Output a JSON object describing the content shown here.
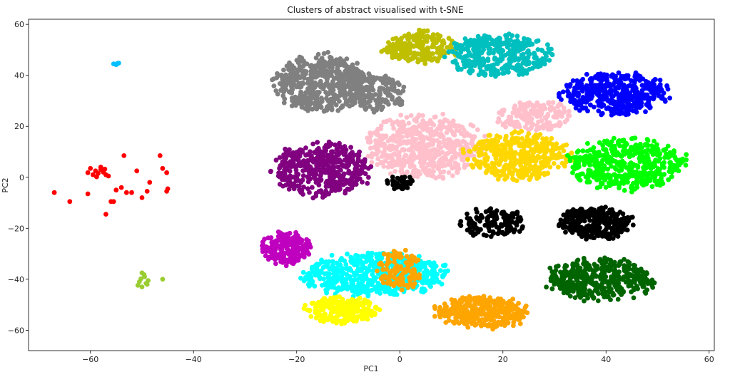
{
  "chart_data": {
    "type": "scatter",
    "title": "Clusters of abstract visualised with t-SNE",
    "xlabel": "PC1",
    "ylabel": "PC2",
    "xlim": [
      -72,
      61
    ],
    "ylim": [
      -68,
      62
    ],
    "xticks": [
      -60,
      -40,
      -20,
      0,
      20,
      40,
      60
    ],
    "yticks": [
      -60,
      -40,
      -20,
      0,
      20,
      40,
      60
    ],
    "xtick_labels": [
      "−60",
      "−40",
      "−20",
      "0",
      "20",
      "40",
      "60"
    ],
    "ytick_labels": [
      "−60",
      "−40",
      "−20",
      "0",
      "20",
      "40",
      "60"
    ],
    "grid": false,
    "legend": "none",
    "clusters": [
      {
        "color": "#ff0000",
        "points": [
          [
            -58,
            3
          ],
          [
            -57.5,
            2
          ],
          [
            -58.5,
            1.5
          ],
          [
            -57,
            1
          ],
          [
            -59,
            2.5
          ],
          [
            -58,
            4
          ],
          [
            -57.2,
            3.2
          ],
          [
            -59.5,
            1
          ],
          [
            -60,
            3.5
          ],
          [
            -56.5,
            0.5
          ],
          [
            -60.5,
            1.8
          ],
          [
            -58.8,
            0.2
          ],
          [
            -55,
            -5
          ],
          [
            -54,
            -4
          ],
          [
            -53,
            -6
          ],
          [
            -53.5,
            8.5
          ],
          [
            -52,
            -6
          ],
          [
            -51,
            2.5
          ],
          [
            -50,
            -8
          ],
          [
            -48.5,
            -2
          ],
          [
            -46.5,
            8.5
          ],
          [
            -46,
            3.5
          ],
          [
            -45.2,
            1.8
          ],
          [
            -45,
            -4.5
          ],
          [
            -45.2,
            -5.5
          ],
          [
            -49,
            -5.5
          ],
          [
            -57,
            -14.5
          ],
          [
            -56,
            -9.5
          ],
          [
            -60.5,
            -6.5
          ],
          [
            -64,
            -9.5
          ],
          [
            -67,
            -6
          ],
          [
            -55.5,
            -9.5
          ]
        ]
      },
      {
        "color": "#00bfff",
        "points": [
          [
            -55.5,
            44.5
          ],
          [
            -54.5,
            44.8
          ],
          [
            -55,
            44.2
          ],
          [
            -54.8,
            44.6
          ]
        ]
      },
      {
        "color": "#9acd32",
        "points": [
          [
            -50,
            -37.5
          ],
          [
            -49.5,
            -39
          ],
          [
            -50.5,
            -41
          ],
          [
            -49,
            -42
          ],
          [
            -50,
            -43
          ],
          [
            -48.8,
            -40.5
          ],
          [
            -49.6,
            -38.2
          ],
          [
            -50.8,
            -42.4
          ],
          [
            -49.2,
            -41.6
          ],
          [
            -50.2,
            -39.8
          ],
          [
            -46,
            -40
          ]
        ]
      }
    ],
    "regions": [
      {
        "color": "#808080",
        "cx": -15,
        "cy": 37,
        "rx": 9,
        "ry": 11,
        "n": 520,
        "seed": 11
      },
      {
        "color": "#808080",
        "cx": -5,
        "cy": 33,
        "rx": 6,
        "ry": 7,
        "n": 150,
        "seed": 12
      },
      {
        "color": "#bfbf00",
        "cx": 4,
        "cy": 51,
        "rx": 7,
        "ry": 6,
        "n": 240,
        "seed": 21
      },
      {
        "color": "#00bfbf",
        "cx": 19,
        "cy": 48,
        "rx": 10,
        "ry": 8,
        "n": 380,
        "seed": 31
      },
      {
        "color": "#0000ff",
        "cx": 42,
        "cy": 33,
        "rx": 10,
        "ry": 8,
        "n": 420,
        "seed": 41
      },
      {
        "color": "#ffc0cb",
        "cx": 5,
        "cy": 12,
        "rx": 11,
        "ry": 12,
        "n": 560,
        "seed": 51
      },
      {
        "color": "#ffc0cb",
        "cx": 26,
        "cy": 24,
        "rx": 7,
        "ry": 6,
        "n": 170,
        "seed": 52
      },
      {
        "color": "#800080",
        "cx": -15,
        "cy": 3,
        "rx": 9,
        "ry": 10,
        "n": 430,
        "seed": 61
      },
      {
        "color": "#ffd700",
        "cx": 23,
        "cy": 8,
        "rx": 10,
        "ry": 9,
        "n": 420,
        "seed": 71
      },
      {
        "color": "#00ff00",
        "cx": 44,
        "cy": 5,
        "rx": 11,
        "ry": 10,
        "n": 470,
        "seed": 81
      },
      {
        "color": "#000000",
        "cx": 38,
        "cy": -18,
        "rx": 7,
        "ry": 6,
        "n": 300,
        "seed": 91
      },
      {
        "color": "#000000",
        "cx": 18,
        "cy": -18,
        "rx": 6,
        "ry": 6,
        "n": 130,
        "seed": 92
      },
      {
        "color": "#000000",
        "cx": 0,
        "cy": -2,
        "rx": 3,
        "ry": 2.5,
        "n": 45,
        "seed": 93
      },
      {
        "color": "#bf00bf",
        "cx": -22,
        "cy": -28,
        "rx": 5,
        "ry": 6,
        "n": 190,
        "seed": 101
      },
      {
        "color": "#00ffff",
        "cx": -5,
        "cy": -38,
        "rx": 14,
        "ry": 8,
        "n": 560,
        "seed": 111
      },
      {
        "color": "#ffff00",
        "cx": -11,
        "cy": -52,
        "rx": 7,
        "ry": 5,
        "n": 220,
        "seed": 121
      },
      {
        "color": "#ffa500",
        "cx": 16,
        "cy": -53,
        "rx": 9,
        "ry": 6,
        "n": 380,
        "seed": 131
      },
      {
        "color": "#ffa500",
        "cx": 0,
        "cy": -36,
        "rx": 4,
        "ry": 8,
        "n": 120,
        "seed": 132
      },
      {
        "color": "#006400",
        "cx": 39,
        "cy": -40,
        "rx": 10,
        "ry": 8,
        "n": 420,
        "seed": 141
      }
    ]
  }
}
